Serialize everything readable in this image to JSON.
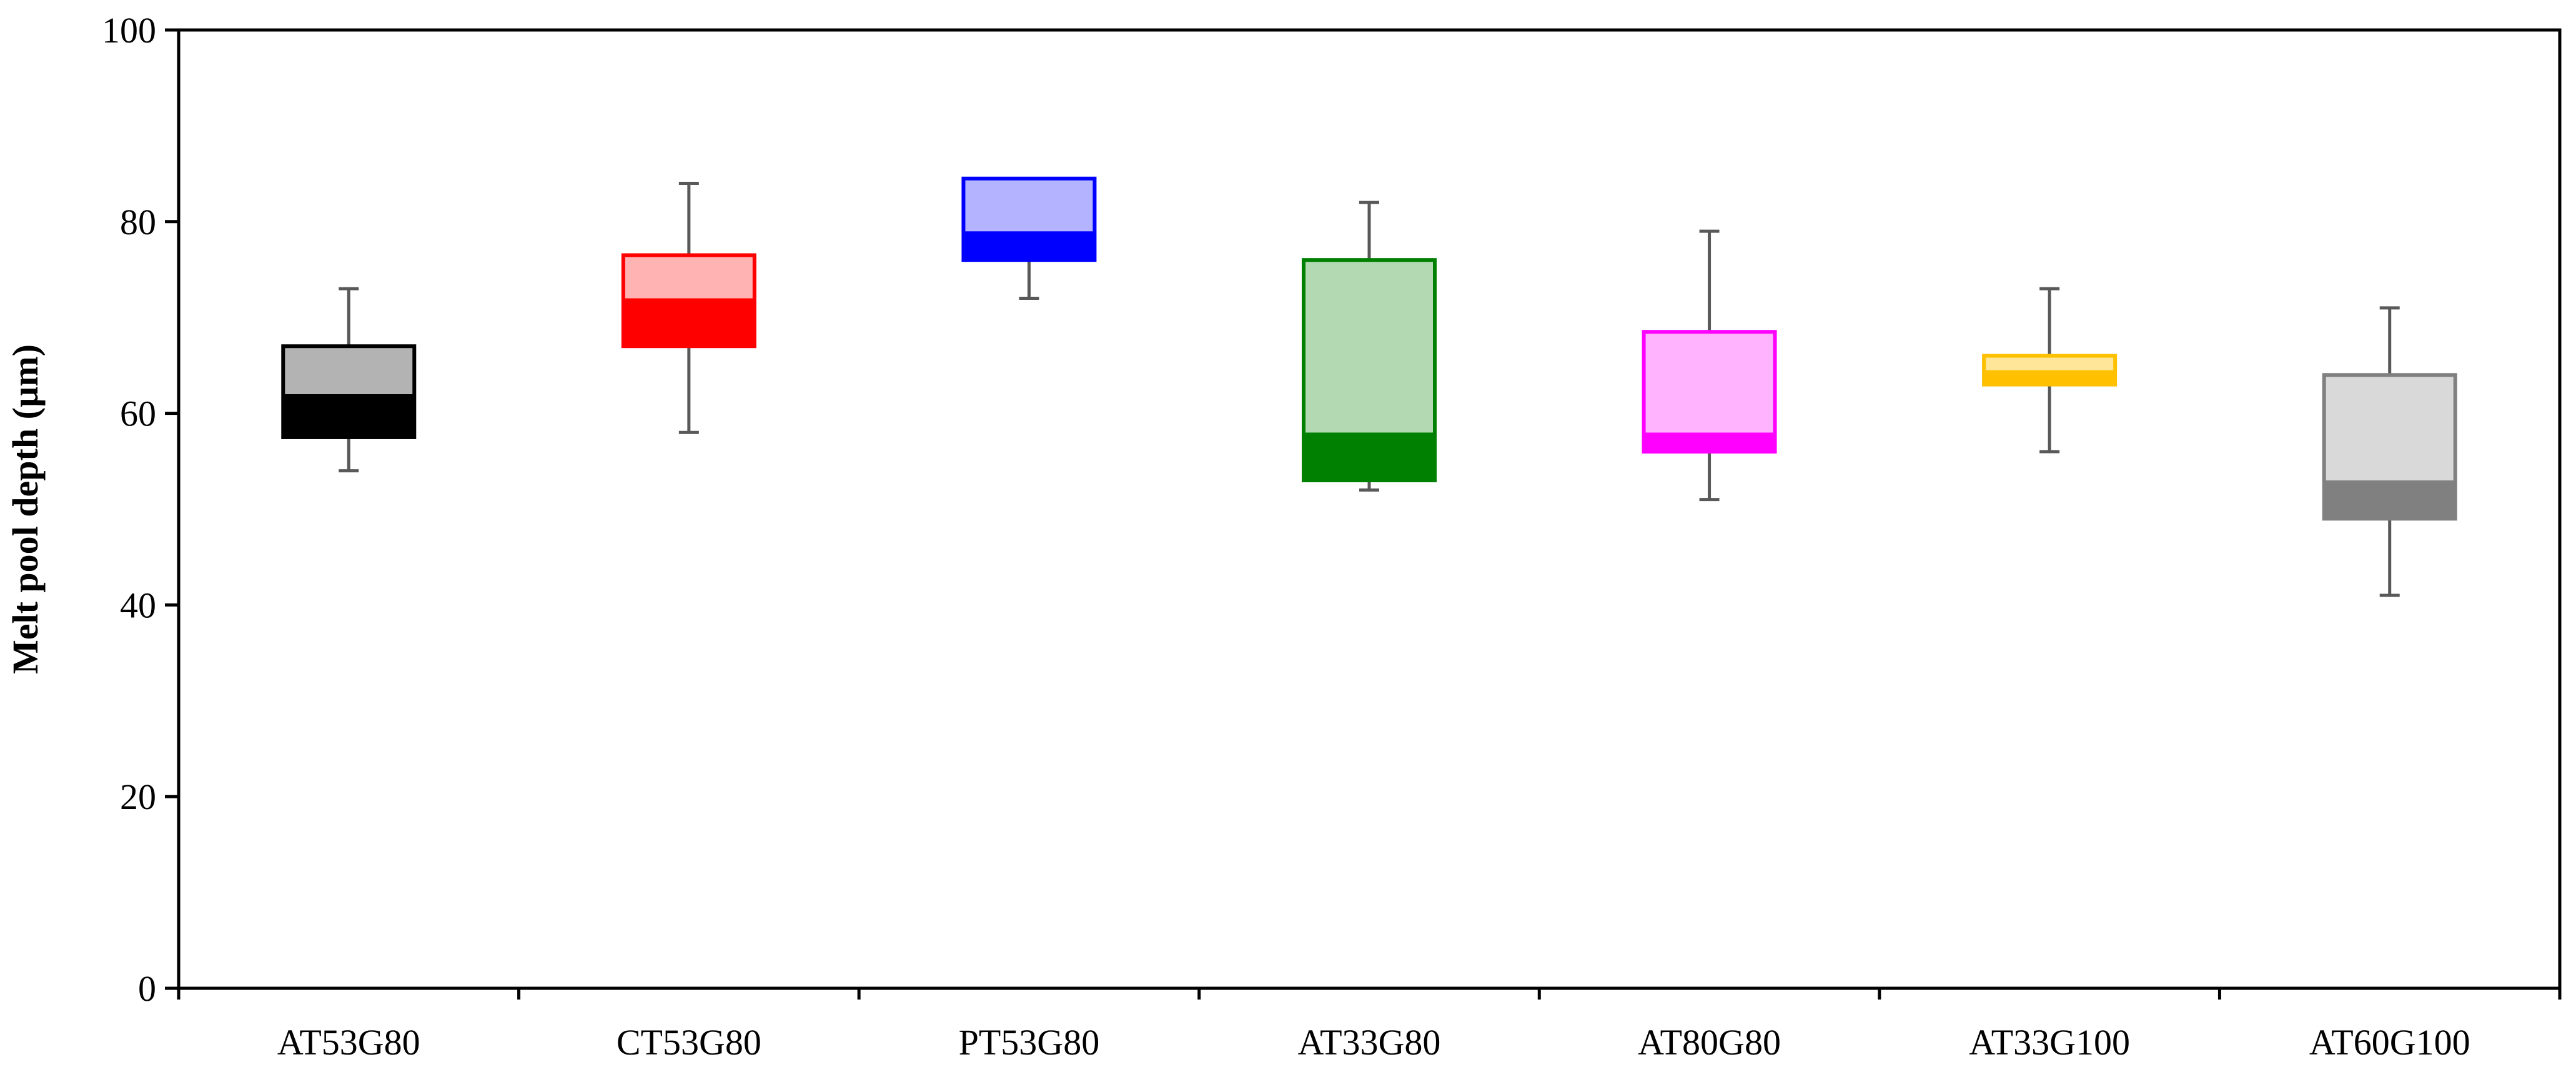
{
  "chart_data": {
    "type": "box",
    "title": "",
    "xlabel": "",
    "ylabel": "Melt pool depth (µm)",
    "ylim": [
      0,
      100
    ],
    "yticks": [
      0,
      20,
      40,
      60,
      80,
      100
    ],
    "grid": false,
    "categories": [
      "AT53G80",
      "CT53G80",
      "PT53G80",
      "AT33G80",
      "AT80G80",
      "AT33G100",
      "AT60G100"
    ],
    "boxes": [
      {
        "name": "AT53G80",
        "min": 54,
        "q1": 57.5,
        "median": 62,
        "q3": 67,
        "max": 73,
        "color": "#000000",
        "light": "#b3b3b3",
        "border": "#000000"
      },
      {
        "name": "CT53G80",
        "min": 58,
        "q1": 67,
        "median": 72,
        "q3": 76.5,
        "max": 84,
        "color": "#ff0000",
        "light": "#ffb3b3",
        "border": "#ff0000"
      },
      {
        "name": "PT53G80",
        "min": 72,
        "q1": 76,
        "median": 79,
        "q3": 84.5,
        "max": 84.5,
        "color": "#0000ff",
        "light": "#b3b3ff",
        "border": "#0000ff"
      },
      {
        "name": "AT33G80",
        "min": 52,
        "q1": 53,
        "median": 58,
        "q3": 76,
        "max": 82,
        "color": "#008000",
        "light": "#b3d9b3",
        "border": "#008000"
      },
      {
        "name": "AT80G80",
        "min": 51,
        "q1": 56,
        "median": 58,
        "q3": 68.5,
        "max": 79,
        "color": "#ff00ff",
        "light": "#ffb3ff",
        "border": "#ff00ff"
      },
      {
        "name": "AT33G100",
        "min": 56,
        "q1": 63,
        "median": 64.5,
        "q3": 66,
        "max": 73,
        "color": "#ffc000",
        "light": "#ffe699",
        "border": "#ffc000"
      },
      {
        "name": "AT60G100",
        "min": 41,
        "q1": 49,
        "median": 53,
        "q3": 64,
        "max": 71,
        "color": "#808080",
        "light": "#d9d9d9",
        "border": "#808080"
      }
    ],
    "whisker_color": "#595959"
  }
}
